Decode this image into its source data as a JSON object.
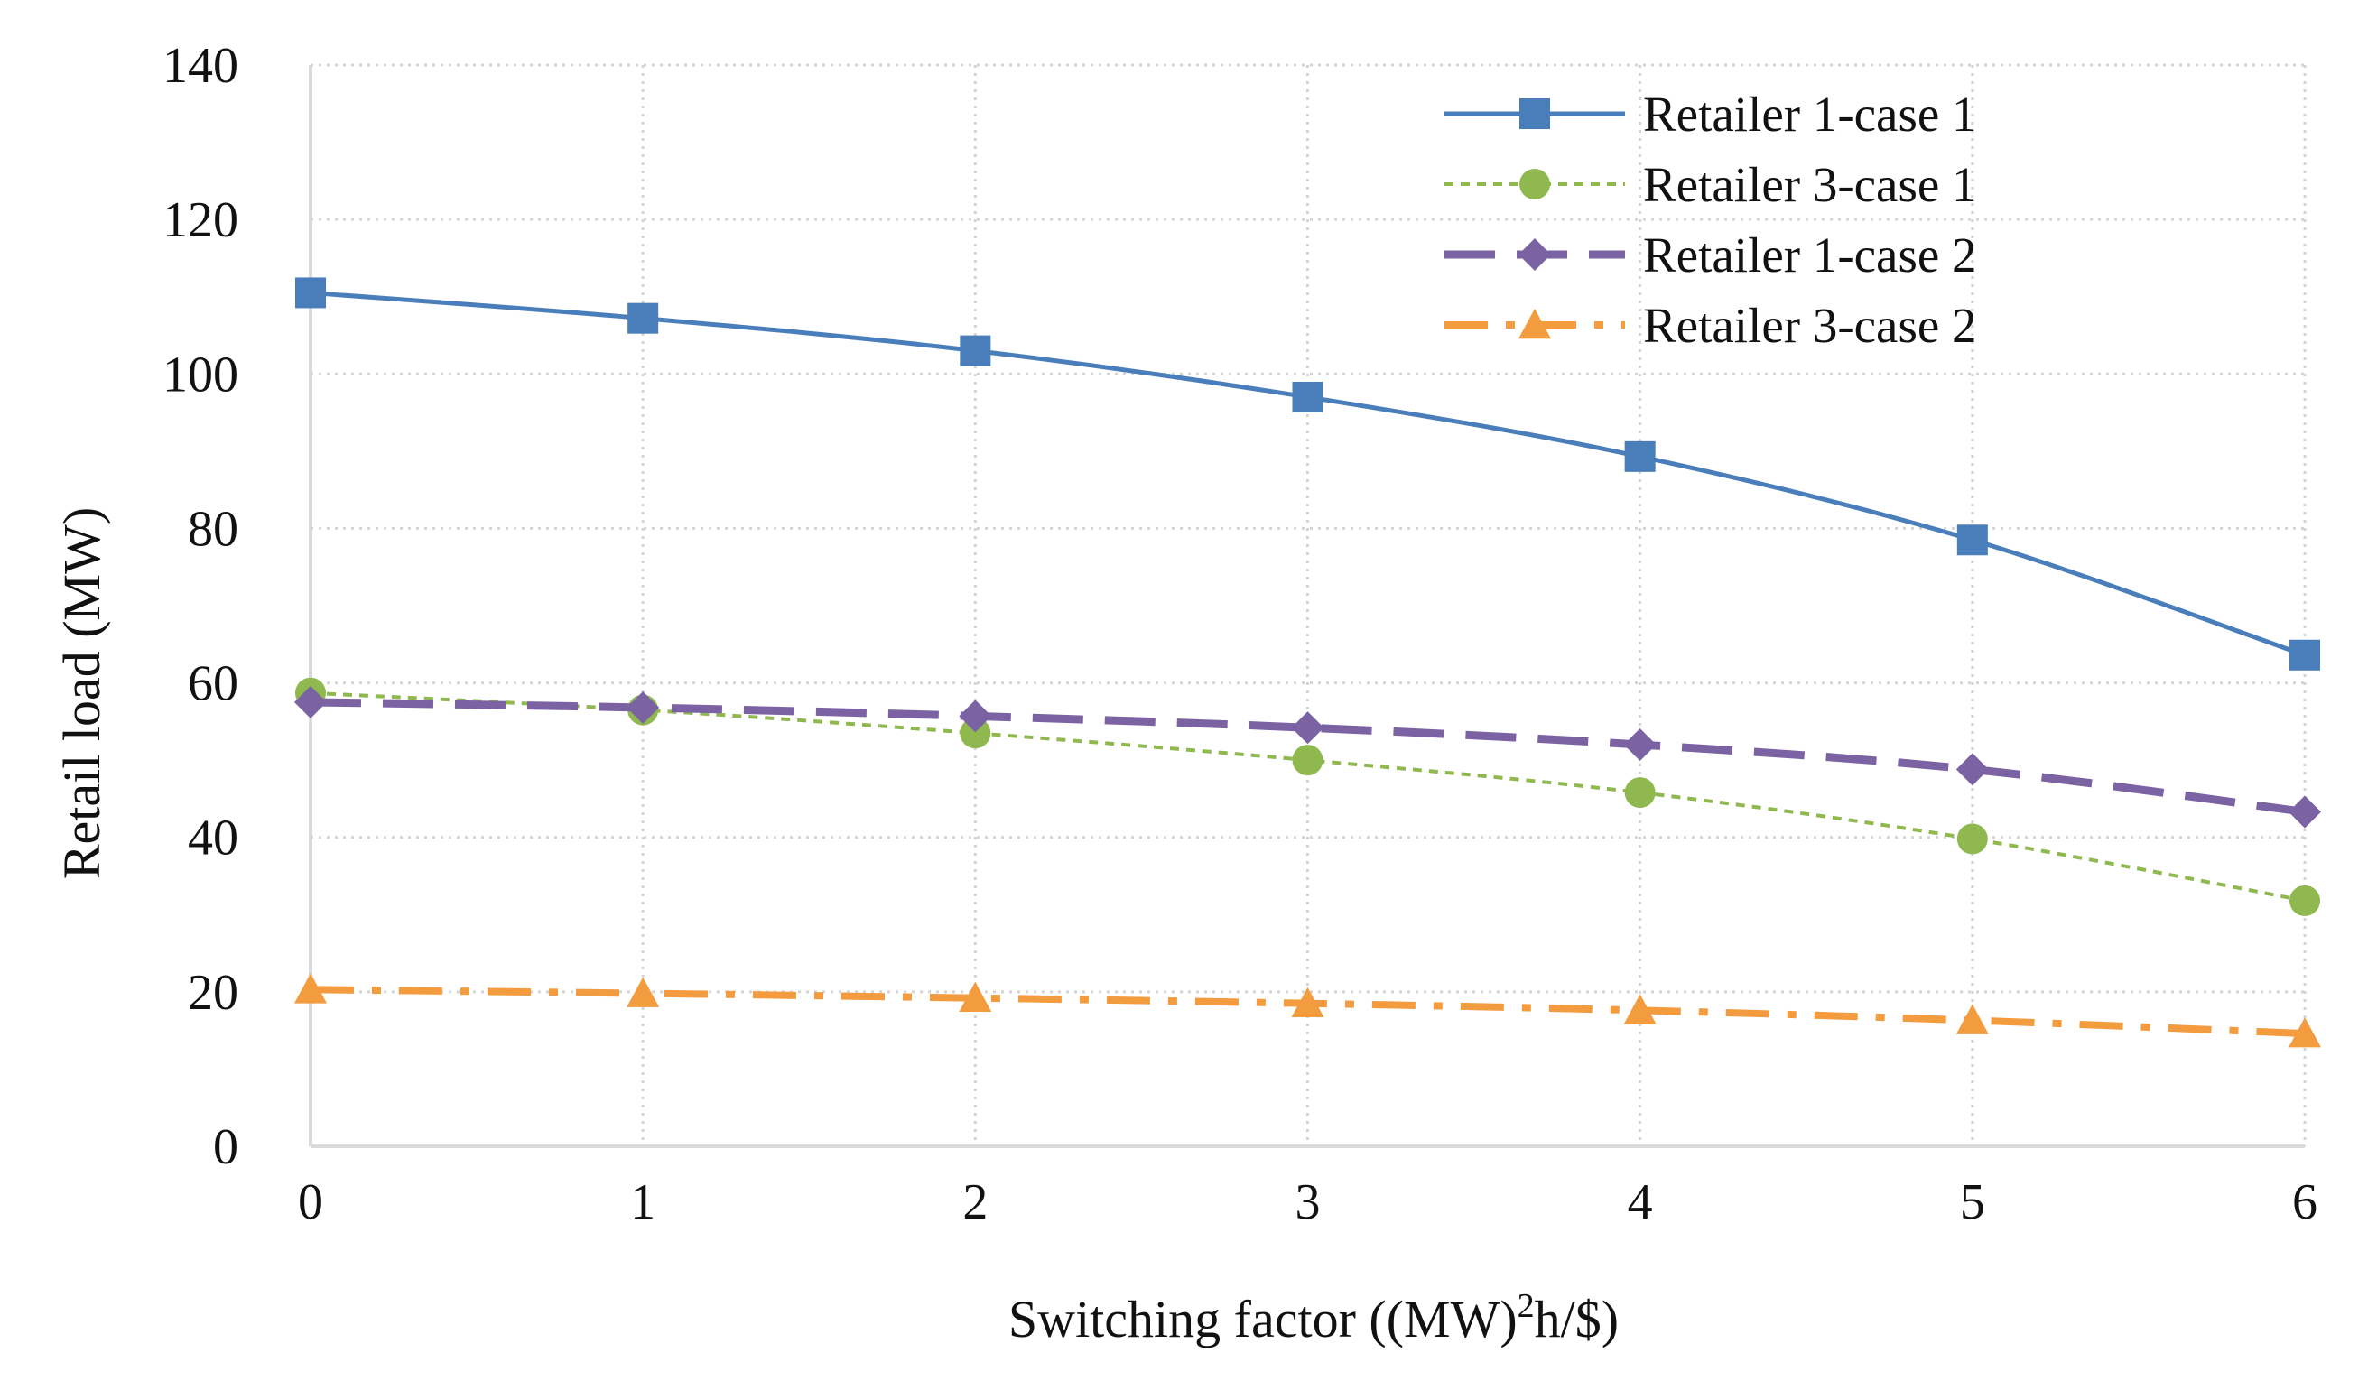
{
  "chart_data": {
    "type": "line",
    "title": "",
    "xlabel": {
      "prefix": "Switching factor ((MW)",
      "sup": "2",
      "suffix": "h/$)"
    },
    "ylabel": "Retail load (MW)",
    "x": [
      0,
      1,
      2,
      3,
      4,
      5,
      6
    ],
    "x_tick_labels": [
      "0",
      "1",
      "2",
      "3",
      "4",
      "5",
      "6"
    ],
    "y_tick_labels": [
      "0",
      "20",
      "40",
      "60",
      "80",
      "100",
      "120",
      "140"
    ],
    "xlim": [
      0,
      6
    ],
    "ylim": [
      0,
      140
    ],
    "y_ticks": [
      0,
      20,
      40,
      60,
      80,
      100,
      120,
      140
    ],
    "grid": true,
    "legend_position": "top-right",
    "series": [
      {
        "name": "Retailer 1-case 1",
        "values": [
          110.5,
          107.2,
          103,
          97,
          89.3,
          78.5,
          63.6
        ],
        "color": "#4a7ebb",
        "marker": "square",
        "dash": "solid"
      },
      {
        "name": "Retailer 3-case 1",
        "values": [
          58.7,
          56.5,
          53.5,
          50,
          45.8,
          39.8,
          31.8
        ],
        "color": "#8fb84e",
        "marker": "circle",
        "dash": "dotted"
      },
      {
        "name": "Retailer 1-case 2",
        "values": [
          57.5,
          56.8,
          55.7,
          54.2,
          52,
          48.8,
          43.3
        ],
        "color": "#7a62a3",
        "marker": "diamond",
        "dash": "longdash"
      },
      {
        "name": "Retailer 3-case 2",
        "values": [
          20.3,
          19.8,
          19.2,
          18.5,
          17.6,
          16.3,
          14.6
        ],
        "color": "#f39b3f",
        "marker": "triangle",
        "dash": "dashdot"
      }
    ]
  }
}
